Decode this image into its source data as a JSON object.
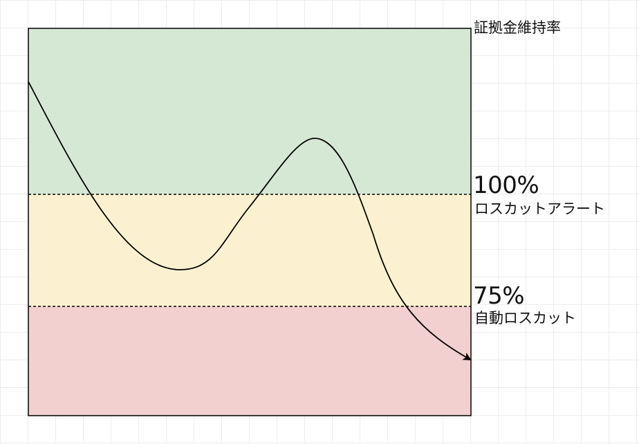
{
  "axis_label": "証拠金維持率",
  "thresholds": [
    {
      "value_label": "100%",
      "description": "ロスカットアラート"
    },
    {
      "value_label": "75%",
      "description": "自動ロスカット"
    }
  ],
  "zones": [
    {
      "name": "safe",
      "color": "#d5e8d4"
    },
    {
      "name": "alert",
      "color": "#fbf1d0"
    },
    {
      "name": "losscut",
      "color": "#f2d0cf"
    }
  ],
  "line_color": "#000000"
}
